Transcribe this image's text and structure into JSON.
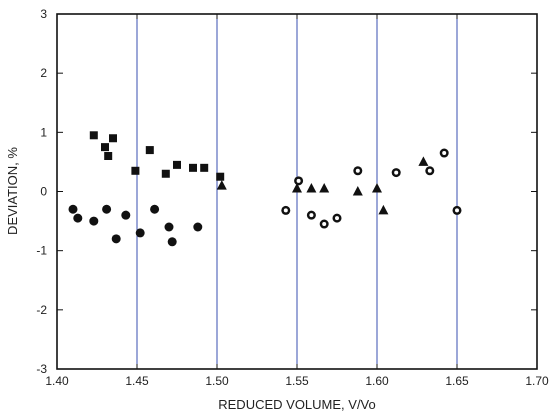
{
  "chart_data": {
    "type": "scatter",
    "title": "",
    "xlabel": "REDUCED VOLUME, V/Vo",
    "ylabel": "DEVIATION, %",
    "xlim": [
      1.4,
      1.7
    ],
    "ylim": [
      -3,
      3
    ],
    "x_ticks": [
      1.4,
      1.45,
      1.5,
      1.55,
      1.6,
      1.65,
      1.7
    ],
    "x_tick_labels": [
      "1.40",
      "1.45",
      "1.50",
      "1.55",
      "1.60",
      "1.65",
      "1.70"
    ],
    "y_ticks": [
      -3,
      -2,
      -1,
      0,
      1,
      2,
      3
    ],
    "y_tick_labels": [
      "-3",
      "-2",
      "-1",
      "0",
      "1",
      "2",
      "3"
    ],
    "grid": "vertical",
    "grid_color": "#3a4fb0",
    "marker_color": "#111111",
    "series": [
      {
        "marker": "square",
        "points": [
          [
            1.423,
            0.95
          ],
          [
            1.43,
            0.75
          ],
          [
            1.432,
            0.6
          ],
          [
            1.435,
            0.9
          ],
          [
            1.449,
            0.35
          ],
          [
            1.458,
            0.7
          ],
          [
            1.468,
            0.3
          ],
          [
            1.475,
            0.45
          ],
          [
            1.485,
            0.4
          ],
          [
            1.492,
            0.4
          ],
          [
            1.502,
            0.25
          ]
        ]
      },
      {
        "marker": "circle",
        "points": [
          [
            1.41,
            -0.3
          ],
          [
            1.413,
            -0.45
          ],
          [
            1.423,
            -0.5
          ],
          [
            1.431,
            -0.3
          ],
          [
            1.437,
            -0.8
          ],
          [
            1.443,
            -0.4
          ],
          [
            1.452,
            -0.7
          ],
          [
            1.461,
            -0.3
          ],
          [
            1.47,
            -0.6
          ],
          [
            1.472,
            -0.85
          ],
          [
            1.488,
            -0.6
          ]
        ]
      },
      {
        "marker": "triangle",
        "points": [
          [
            1.503,
            0.1
          ],
          [
            1.55,
            0.05
          ],
          [
            1.559,
            0.05
          ],
          [
            1.567,
            0.05
          ],
          [
            1.588,
            0.0
          ],
          [
            1.6,
            0.05
          ],
          [
            1.604,
            -0.32
          ],
          [
            1.629,
            0.5
          ]
        ]
      },
      {
        "marker": "open-circle",
        "points": [
          [
            1.543,
            -0.32
          ],
          [
            1.551,
            0.18
          ],
          [
            1.559,
            -0.4
          ],
          [
            1.567,
            -0.55
          ],
          [
            1.575,
            -0.45
          ],
          [
            1.588,
            0.35
          ],
          [
            1.612,
            0.32
          ],
          [
            1.633,
            0.35
          ],
          [
            1.642,
            0.65
          ],
          [
            1.65,
            -0.32
          ]
        ]
      }
    ]
  }
}
